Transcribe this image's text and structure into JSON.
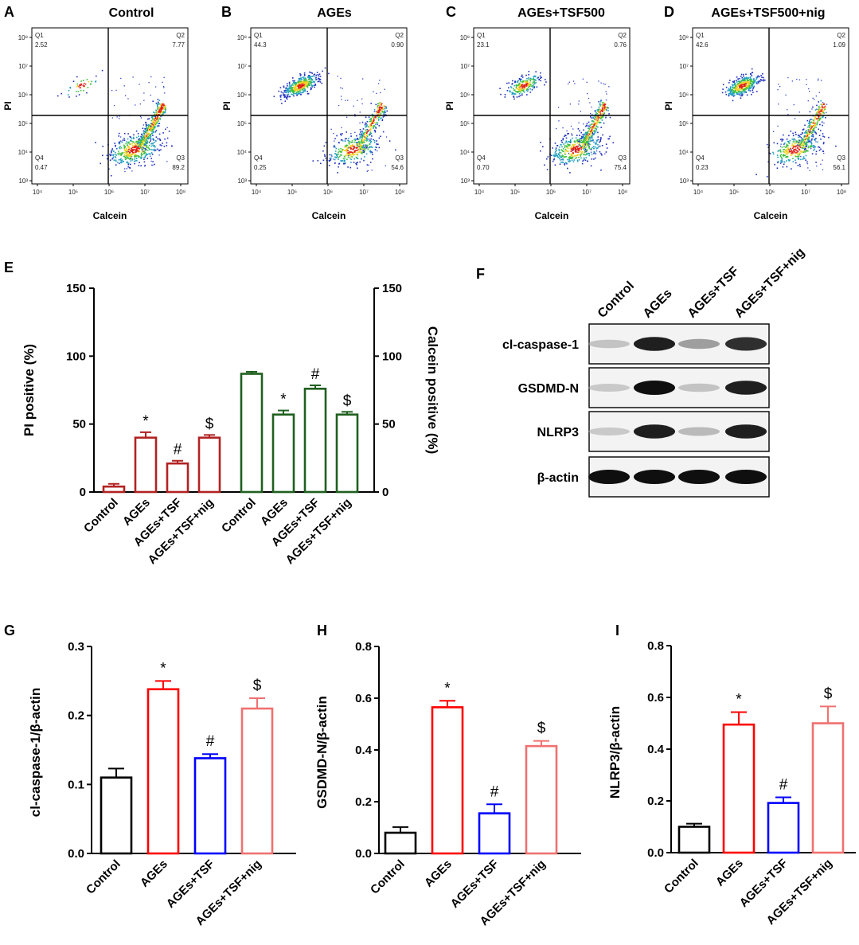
{
  "panel_letters": [
    "A",
    "B",
    "C",
    "D",
    "E",
    "F",
    "G",
    "H",
    "I"
  ],
  "chart_data": [
    {
      "type": "scatter",
      "id": "A",
      "title": "Control",
      "xlabel": "Calcein",
      "ylabel": "PI",
      "x_ticks": [
        "10⁴",
        "10⁵",
        "10⁶",
        "10⁷",
        "10⁸"
      ],
      "y_ticks": [
        "10⁸",
        "10⁷",
        "10⁶",
        "10⁵",
        "10⁴",
        "10³"
      ],
      "quadrants": {
        "Q1": "2.52",
        "Q2": "7.77",
        "Q3": "89.2",
        "Q4": "0.47"
      }
    },
    {
      "type": "scatter",
      "id": "B",
      "title": "AGEs",
      "xlabel": "Calcein",
      "ylabel": "PI",
      "x_ticks": [
        "10⁴",
        "10⁵",
        "10⁶",
        "10⁷",
        "10⁸"
      ],
      "y_ticks": [
        "10⁸",
        "10⁷",
        "10⁶",
        "10⁵",
        "10⁴",
        "10³"
      ],
      "quadrants": {
        "Q1": "44.3",
        "Q2": "0.90",
        "Q3": "54.6",
        "Q4": "0.25"
      }
    },
    {
      "type": "scatter",
      "id": "C",
      "title": "AGEs+TSF500",
      "xlabel": "Calcein",
      "ylabel": "PI",
      "x_ticks": [
        "10⁴",
        "10⁵",
        "10⁶",
        "10⁷",
        "10⁸"
      ],
      "y_ticks": [
        "10⁸",
        "10⁷",
        "10⁶",
        "10⁵",
        "10⁴",
        "10³"
      ],
      "quadrants": {
        "Q1": "23.1",
        "Q2": "0.76",
        "Q3": "75.4",
        "Q4": "0.70"
      }
    },
    {
      "type": "scatter",
      "id": "D",
      "title": "AGEs+TSF500+nig",
      "xlabel": "Calcein",
      "ylabel": "PI",
      "x_ticks": [
        "10⁴",
        "10⁵",
        "10⁶",
        "10⁷",
        "10⁸"
      ],
      "y_ticks": [
        "10⁸",
        "10⁷",
        "10⁶",
        "10⁵",
        "10⁴",
        "10³"
      ],
      "quadrants": {
        "Q1": "42.6",
        "Q2": "1.09",
        "Q3": "56.1",
        "Q4": "0.23"
      }
    },
    {
      "type": "bar",
      "id": "E",
      "ylabel": "PI positive (%)",
      "y2label": "Calcein positive (%)",
      "ylim": [
        0,
        150
      ],
      "yticks": [
        0,
        50,
        100,
        150
      ],
      "series": [
        {
          "name": "PI positive",
          "color": "#b22222",
          "categories": [
            "Control",
            "AGEs",
            "AGEs+TSF",
            "AGEs+TSF+nig"
          ],
          "values": [
            4,
            40,
            21,
            40
          ],
          "errors": [
            2,
            4,
            2,
            2
          ],
          "marks": [
            "",
            "*",
            "#",
            "$"
          ]
        },
        {
          "name": "Calcein positive",
          "color": "#1f5f1f",
          "categories": [
            "Control",
            "AGEs",
            "AGEs+TSF",
            "AGEs+TSF+nig"
          ],
          "values": [
            87,
            57,
            76,
            57
          ],
          "errors": [
            1.5,
            3,
            2.5,
            2
          ],
          "marks": [
            "",
            "*",
            "#",
            "$"
          ]
        }
      ]
    },
    {
      "type": "table",
      "id": "F",
      "lanes": [
        "Control",
        "AGEs",
        "AGEs+TSF",
        "AGEs+TSF+nig"
      ],
      "rows": [
        "cl-caspase-1",
        "GSDMD-N",
        "NLRP3",
        "β-actin"
      ]
    },
    {
      "type": "bar",
      "id": "G",
      "ylabel": "cl-caspase-1/β-actin",
      "ylim": [
        0,
        0.3
      ],
      "yticks": [
        "0.0",
        "0.1",
        "0.2",
        "0.3"
      ],
      "categories": [
        "Control",
        "AGEs",
        "AGEs+TSF",
        "AGEs+TSF+nig"
      ],
      "values": [
        0.11,
        0.238,
        0.138,
        0.21
      ],
      "errors": [
        0.013,
        0.012,
        0.006,
        0.015
      ],
      "colors": [
        "#000000",
        "#ff0000",
        "#0000ff",
        "#f07070"
      ],
      "marks": [
        "",
        "*",
        "#",
        "$"
      ]
    },
    {
      "type": "bar",
      "id": "H",
      "ylabel": "GSDMD-N/β-actin",
      "ylim": [
        0,
        0.8
      ],
      "yticks": [
        "0.0",
        "0.2",
        "0.4",
        "0.6",
        "0.8"
      ],
      "categories": [
        "Control",
        "AGEs",
        "AGEs+TSF",
        "AGEs+TSF+nig"
      ],
      "values": [
        0.08,
        0.565,
        0.155,
        0.415
      ],
      "errors": [
        0.022,
        0.025,
        0.035,
        0.02
      ],
      "colors": [
        "#000000",
        "#ff0000",
        "#0000ff",
        "#f07070"
      ],
      "marks": [
        "",
        "*",
        "#",
        "$"
      ]
    },
    {
      "type": "bar",
      "id": "I",
      "ylabel": "NLRP3/β-actin",
      "ylim": [
        0,
        0.8
      ],
      "yticks": [
        "0.0",
        "0.2",
        "0.4",
        "0.6",
        "0.8"
      ],
      "categories": [
        "Control",
        "AGEs",
        "AGEs+TSF",
        "AGEs+TSF+nig"
      ],
      "values": [
        0.1,
        0.495,
        0.192,
        0.5
      ],
      "errors": [
        0.012,
        0.048,
        0.022,
        0.065
      ],
      "colors": [
        "#000000",
        "#ff0000",
        "#0000ff",
        "#f07070"
      ],
      "marks": [
        "",
        "*",
        "#",
        "$"
      ]
    }
  ]
}
